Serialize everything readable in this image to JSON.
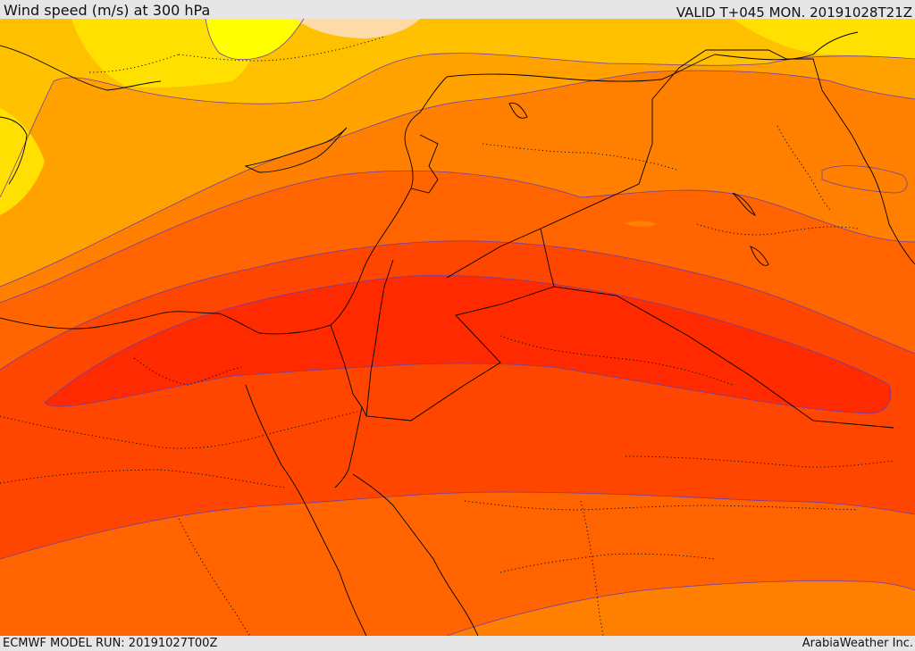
{
  "header": {
    "title": "Wind speed (m/s) at 300 hPa",
    "valid_time": "VALID T+045 MON. 20191028T21Z"
  },
  "footer": {
    "model_run": "ECMWF MODEL RUN: 20191027T00Z",
    "credit": "ArabiaWeather Inc."
  },
  "map": {
    "variable": "wind speed",
    "units": "m/s",
    "level": "300 hPa",
    "colors": {
      "band_1": "#ffff00",
      "band_2": "#ffe000",
      "band_3": "#ffc000",
      "band_4": "#ffa200",
      "band_5": "#ff8000",
      "band_6": "#ff6400",
      "band_7": "#ff4600",
      "band_8": "#ff2a00",
      "highlight": "#fddaa6",
      "contour_line": "#6e3ea8",
      "coast_border": "#000000"
    }
  }
}
